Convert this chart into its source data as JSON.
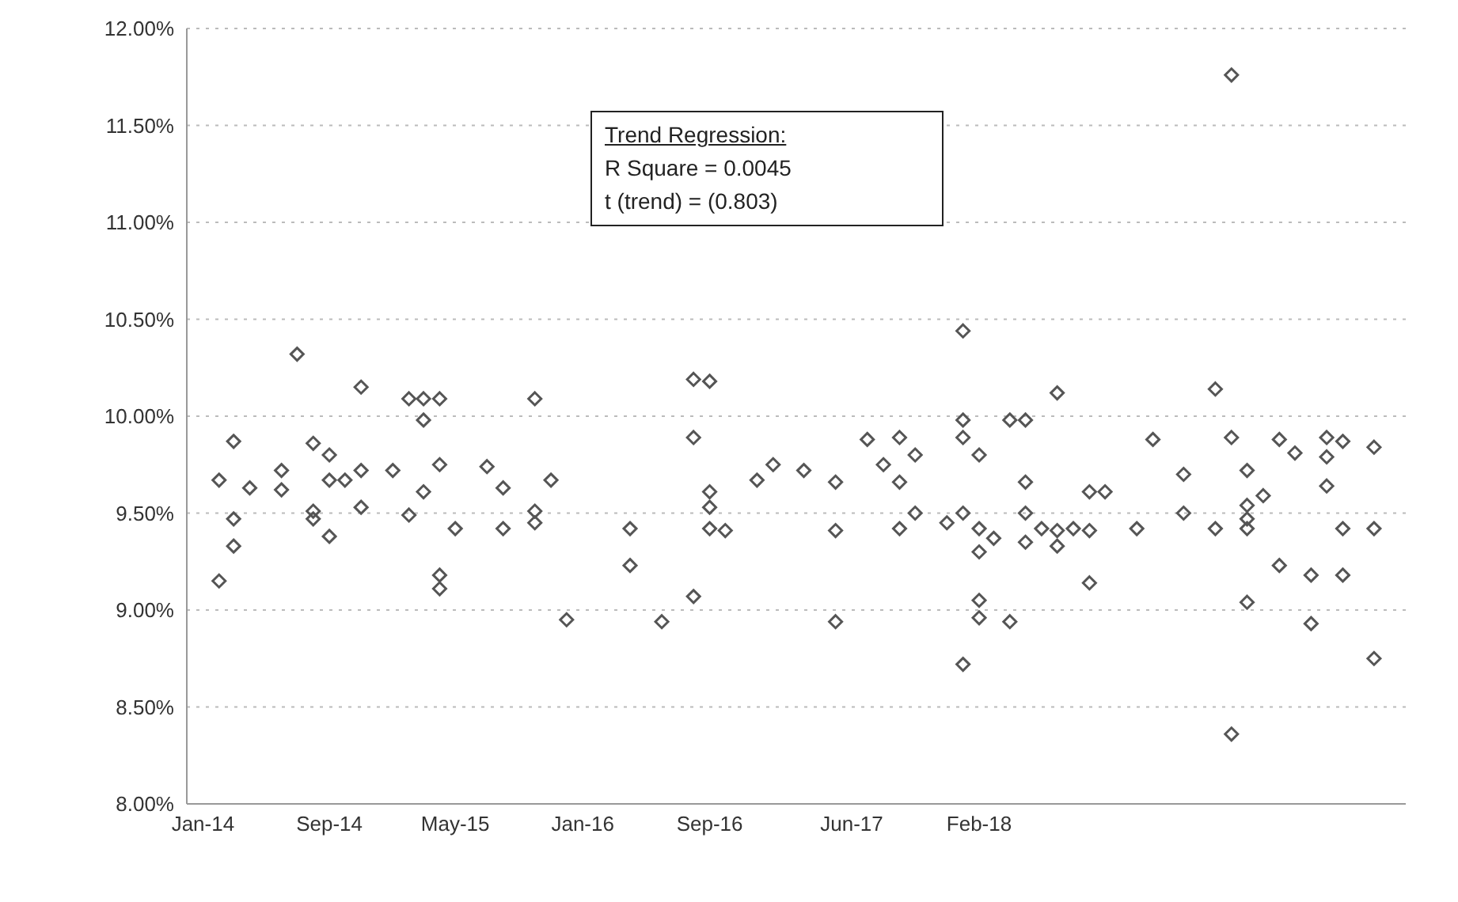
{
  "chart_data": {
    "type": "scatter",
    "marker": "diamond",
    "grid": "y",
    "color": "#555555",
    "annotations": [
      "Trend Regression:",
      "R Square = 0.0045",
      "t (trend) = (0.803)"
    ],
    "x": [
      "2014-02",
      "2014-02",
      "2014-03",
      "2014-03",
      "2014-03",
      "2014-04",
      "2014-06",
      "2014-06",
      "2014-07",
      "2014-08",
      "2014-08",
      "2014-08",
      "2014-09",
      "2014-09",
      "2014-09",
      "2014-10",
      "2014-11",
      "2014-11",
      "2014-11",
      "2015-01",
      "2015-02",
      "2015-02",
      "2015-03",
      "2015-03",
      "2015-03",
      "2015-04",
      "2015-04",
      "2015-04",
      "2015-04",
      "2015-05",
      "2015-07",
      "2015-08",
      "2015-08",
      "2015-10",
      "2015-10",
      "2015-10",
      "2015-11",
      "2015-12",
      "2016-04",
      "2016-04",
      "2016-06",
      "2016-08",
      "2016-08",
      "2016-09",
      "2016-08",
      "2016-09",
      "2016-09",
      "2016-09",
      "2016-10",
      "2016-12",
      "2017-01",
      "2017-03",
      "2017-05",
      "2017-05",
      "2017-05",
      "2017-07",
      "2017-08",
      "2017-09",
      "2017-09",
      "2017-09",
      "2017-10",
      "2017-10",
      "2017-12",
      "2018-01",
      "2018-01",
      "2018-01",
      "2018-01",
      "2018-01",
      "2018-02",
      "2018-02",
      "2018-02",
      "2018-02",
      "2018-02",
      "2018-03",
      "2018-04",
      "2018-04",
      "2018-05",
      "2018-05",
      "2018-05",
      "2018-05",
      "2018-06",
      "2018-07",
      "2018-07",
      "2018-07",
      "2018-08",
      "2018-09",
      "2018-09",
      "2018-09",
      "2018-10",
      "2018-12",
      "2019-01",
      "2019-03",
      "2019-03",
      "2019-05",
      "2019-05",
      "2019-06",
      "2019-06",
      "2019-06",
      "2019-07",
      "2019-07",
      "2019-07",
      "2019-07",
      "2019-07",
      "2019-08",
      "2019-09",
      "2019-09",
      "2019-10",
      "2019-11",
      "2019-11",
      "2019-12",
      "2019-12",
      "2019-12",
      "2020-01",
      "2020-01",
      "2020-01",
      "2020-03",
      "2020-03",
      "2020-03"
    ],
    "values": [
      9.15,
      9.67,
      9.47,
      9.87,
      9.33,
      9.63,
      9.72,
      9.62,
      10.32,
      9.51,
      9.47,
      9.86,
      9.67,
      9.38,
      9.8,
      9.67,
      9.72,
      9.53,
      10.15,
      9.72,
      9.49,
      10.09,
      10.09,
      9.61,
      9.98,
      10.09,
      9.18,
      9.75,
      9.11,
      9.42,
      9.74,
      9.63,
      9.42,
      10.09,
      9.51,
      9.45,
      9.67,
      8.95,
      9.42,
      9.23,
      8.94,
      10.19,
      9.07,
      10.18,
      9.89,
      9.53,
      9.61,
      9.42,
      9.41,
      9.67,
      9.75,
      9.72,
      9.66,
      9.41,
      8.94,
      9.88,
      9.75,
      9.42,
      9.66,
      9.89,
      9.5,
      9.8,
      9.45,
      9.89,
      10.44,
      8.72,
      9.98,
      9.5,
      9.05,
      8.96,
      9.3,
      9.8,
      9.42,
      9.37,
      8.94,
      9.98,
      9.5,
      9.66,
      9.98,
      9.35,
      9.42,
      10.12,
      9.33,
      9.41,
      9.42,
      9.14,
      9.41,
      9.61,
      9.61,
      9.42,
      9.88,
      9.5,
      9.7,
      9.42,
      10.14,
      11.76,
      9.89,
      8.36,
      9.72,
      9.54,
      9.47,
      9.04,
      9.42,
      9.59,
      9.23,
      9.88,
      9.81,
      9.18,
      8.93,
      9.89,
      9.64,
      9.79,
      9.87,
      9.18,
      9.42,
      9.84,
      9.42,
      8.75
    ],
    "xlim": [
      "2013-12",
      "2020-05"
    ],
    "xticks": [
      {
        "value": "2014-01",
        "label": "Jan-14"
      },
      {
        "value": "2014-09",
        "label": "Sep-14"
      },
      {
        "value": "2015-05",
        "label": "May-15"
      },
      {
        "value": "2016-01",
        "label": "Jan-16"
      },
      {
        "value": "2016-09",
        "label": "Sep-16"
      },
      {
        "value": "2017-06",
        "label": "Jun-17"
      },
      {
        "value": "2018-02",
        "label": "Feb-18"
      }
    ],
    "ylim": [
      8,
      12
    ],
    "yticks": [
      {
        "value": 8,
        "label": "8.00%"
      },
      {
        "value": 8.5,
        "label": "8.50%"
      },
      {
        "value": 9,
        "label": "9.00%"
      },
      {
        "value": 9.5,
        "label": "9.50%"
      },
      {
        "value": 10,
        "label": "10.00%"
      },
      {
        "value": 10.5,
        "label": "10.50%"
      },
      {
        "value": 11,
        "label": "11.00%"
      },
      {
        "value": 11.5,
        "label": "11.50%"
      },
      {
        "value": 12,
        "label": "12.00%"
      }
    ]
  }
}
